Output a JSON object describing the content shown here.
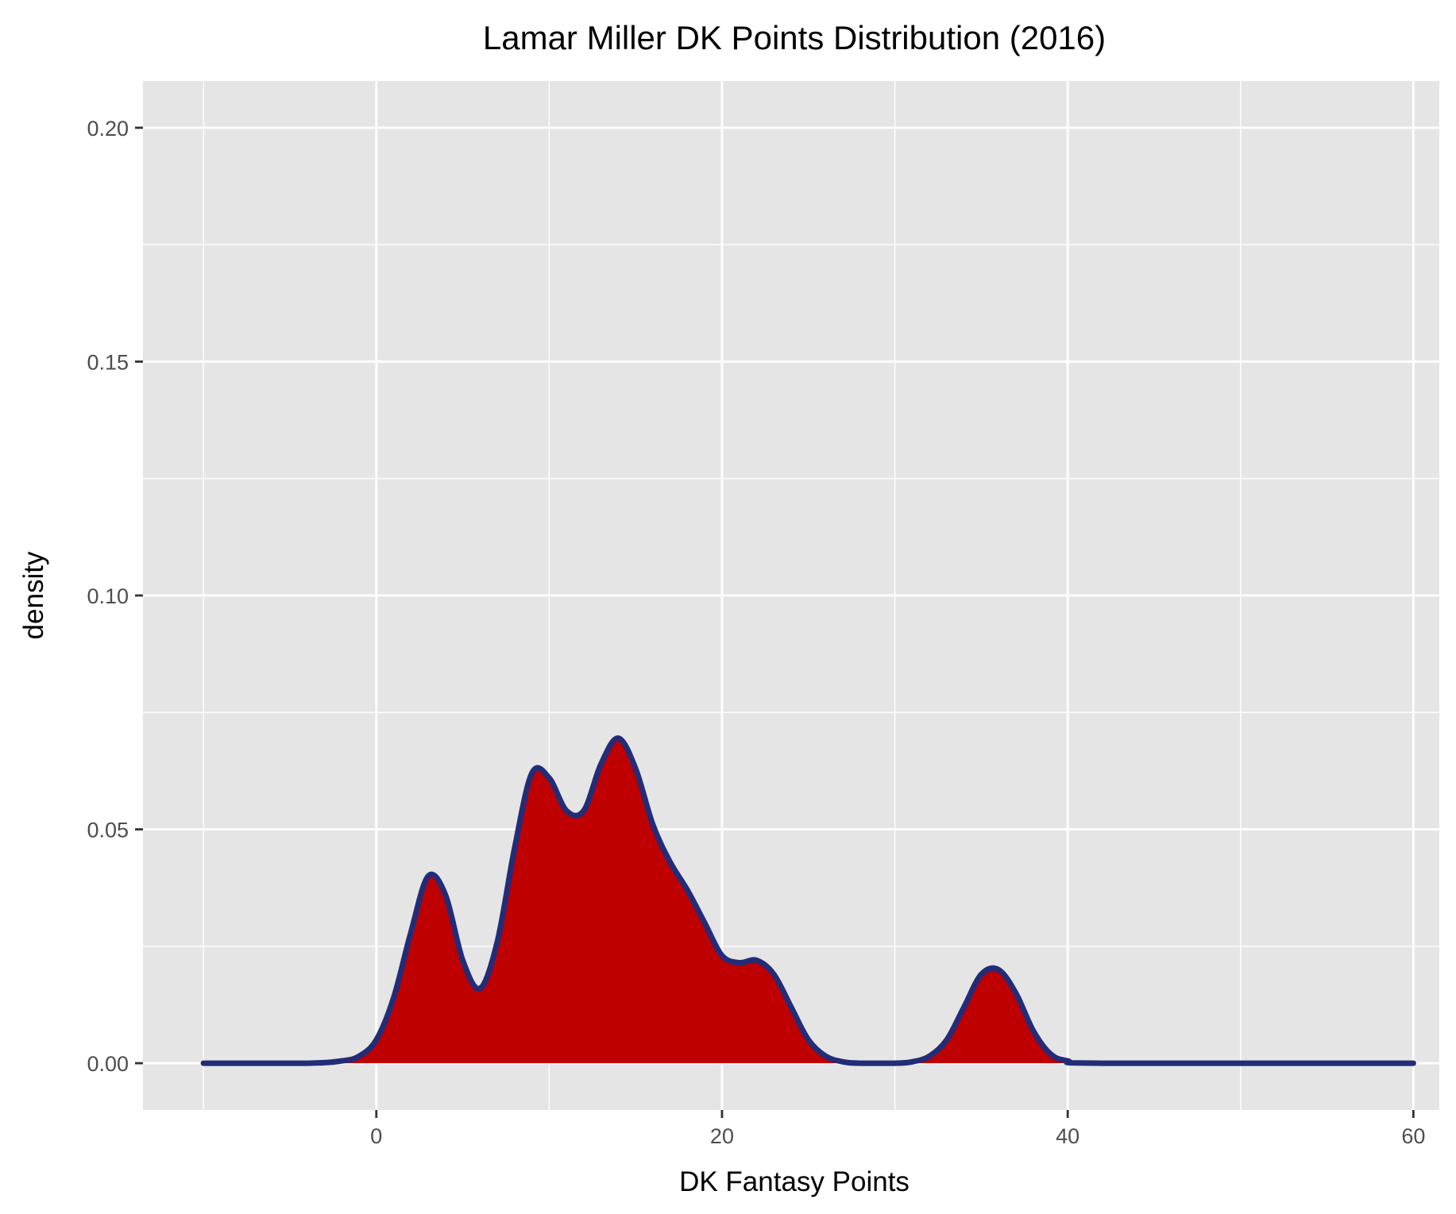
{
  "chart_data": {
    "type": "area",
    "title": "Lamar Miller DK Points Distribution (2016)",
    "xlabel": "DK Fantasy Points",
    "ylabel": "density",
    "xlim": [
      -13.5,
      61.5
    ],
    "ylim": [
      -0.01,
      0.21
    ],
    "x_ticks": [
      0,
      20,
      40,
      60
    ],
    "x_tick_labels": [
      "0",
      "20",
      "40",
      "60"
    ],
    "x_minor_ticks": [
      -10,
      10,
      30,
      50
    ],
    "y_ticks": [
      0,
      0.05,
      0.1,
      0.15,
      0.2
    ],
    "y_tick_labels": [
      "0.00",
      "0.05",
      "0.10",
      "0.15",
      "0.20"
    ],
    "y_minor_ticks": [
      0.025,
      0.075,
      0.125,
      0.175
    ],
    "grid": true,
    "legend": "none",
    "series": [
      {
        "x": [
          -10,
          -4,
          -2,
          -1,
          0,
          1,
          2,
          3,
          4,
          5,
          6,
          7,
          8,
          9,
          10,
          11,
          12,
          13,
          14,
          15,
          16,
          17,
          18,
          19,
          20,
          21,
          22,
          23,
          24,
          25,
          26,
          27,
          28,
          30,
          31,
          32,
          33,
          34,
          35,
          36,
          37,
          38,
          39,
          40,
          42,
          60
        ],
        "y": [
          0,
          0,
          0.0005,
          0.0015,
          0.005,
          0.014,
          0.028,
          0.04,
          0.036,
          0.022,
          0.016,
          0.026,
          0.046,
          0.062,
          0.061,
          0.054,
          0.054,
          0.064,
          0.0695,
          0.063,
          0.051,
          0.043,
          0.037,
          0.03,
          0.023,
          0.0215,
          0.022,
          0.019,
          0.012,
          0.005,
          0.0015,
          0.0003,
          0,
          0,
          0.0003,
          0.0015,
          0.005,
          0.012,
          0.019,
          0.02,
          0.015,
          0.007,
          0.002,
          0.0005,
          0,
          0
        ]
      }
    ],
    "colors": {
      "panel_background": "#e5e5e5",
      "grid": "#ffffff",
      "fill": "#be0000",
      "line": "#232c77"
    }
  }
}
